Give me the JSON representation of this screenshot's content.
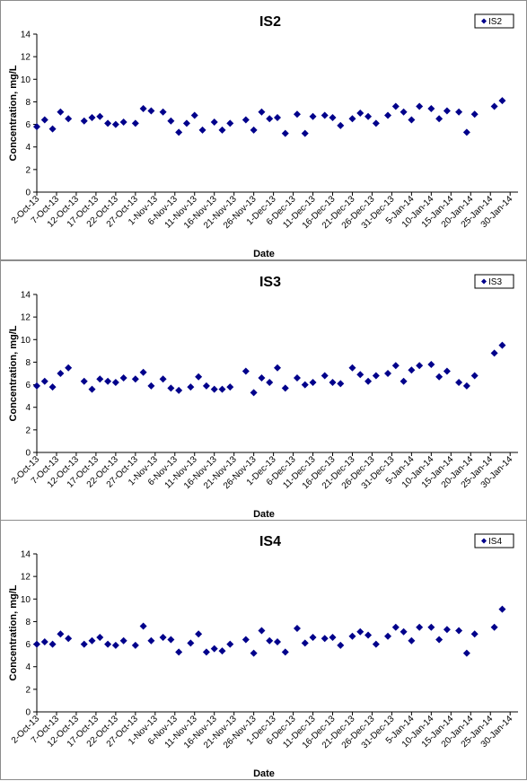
{
  "chart_data": [
    {
      "type": "scatter",
      "title": "IS2",
      "xlabel": "Date",
      "ylabel": "Concentration, mg/L",
      "ylim": [
        0,
        14
      ],
      "yticks": [
        0,
        2,
        4,
        6,
        8,
        10,
        12,
        14
      ],
      "xlim": [
        "2-Oct-13",
        "1-Feb-14"
      ],
      "xtick_labels": [
        "2-Oct-13",
        "7-Oct-13",
        "12-Oct-13",
        "17-Oct-13",
        "22-Oct-13",
        "27-Oct-13",
        "1-Nov-13",
        "6-Nov-13",
        "11-Nov-13",
        "16-Nov-13",
        "21-Nov-13",
        "26-Nov-13",
        "1-Dec-13",
        "6-Dec-13",
        "11-Dec-13",
        "16-Dec-13",
        "21-Dec-13",
        "26-Dec-13",
        "31-Dec-13",
        "5-Jan-14",
        "10-Jan-14",
        "15-Jan-14",
        "20-Jan-14",
        "25-Jan-14",
        "30-Jan-14"
      ],
      "grid": false,
      "legend_position": "top-right",
      "series": [
        {
          "name": "IS2",
          "color": "#00008B",
          "marker": "diamond",
          "points": [
            [
              "2-Oct-13",
              5.8
            ],
            [
              "4-Oct-13",
              6.4
            ],
            [
              "6-Oct-13",
              5.6
            ],
            [
              "8-Oct-13",
              7.1
            ],
            [
              "10-Oct-13",
              6.5
            ],
            [
              "14-Oct-13",
              6.3
            ],
            [
              "16-Oct-13",
              6.6
            ],
            [
              "18-Oct-13",
              6.7
            ],
            [
              "20-Oct-13",
              6.1
            ],
            [
              "22-Oct-13",
              6.0
            ],
            [
              "24-Oct-13",
              6.2
            ],
            [
              "27-Oct-13",
              6.1
            ],
            [
              "29-Oct-13",
              7.4
            ],
            [
              "31-Oct-13",
              7.2
            ],
            [
              "3-Nov-13",
              7.1
            ],
            [
              "5-Nov-13",
              6.3
            ],
            [
              "7-Nov-13",
              5.3
            ],
            [
              "9-Nov-13",
              6.1
            ],
            [
              "11-Nov-13",
              6.8
            ],
            [
              "13-Nov-13",
              5.5
            ],
            [
              "16-Nov-13",
              6.2
            ],
            [
              "18-Nov-13",
              5.5
            ],
            [
              "20-Nov-13",
              6.1
            ],
            [
              "24-Nov-13",
              6.4
            ],
            [
              "26-Nov-13",
              5.5
            ],
            [
              "28-Nov-13",
              7.1
            ],
            [
              "30-Nov-13",
              6.5
            ],
            [
              "2-Dec-13",
              6.6
            ],
            [
              "4-Dec-13",
              5.2
            ],
            [
              "7-Dec-13",
              6.9
            ],
            [
              "9-Dec-13",
              5.2
            ],
            [
              "11-Dec-13",
              6.7
            ],
            [
              "14-Dec-13",
              6.8
            ],
            [
              "16-Dec-13",
              6.6
            ],
            [
              "18-Dec-13",
              5.9
            ],
            [
              "21-Dec-13",
              6.5
            ],
            [
              "23-Dec-13",
              7.0
            ],
            [
              "25-Dec-13",
              6.7
            ],
            [
              "27-Dec-13",
              6.1
            ],
            [
              "30-Dec-13",
              6.8
            ],
            [
              "1-Jan-14",
              7.6
            ],
            [
              "3-Jan-14",
              7.1
            ],
            [
              "5-Jan-14",
              6.4
            ],
            [
              "7-Jan-14",
              7.6
            ],
            [
              "10-Jan-14",
              7.4
            ],
            [
              "12-Jan-14",
              6.5
            ],
            [
              "14-Jan-14",
              7.2
            ],
            [
              "17-Jan-14",
              7.1
            ],
            [
              "19-Jan-14",
              5.3
            ],
            [
              "21-Jan-14",
              6.9
            ],
            [
              "26-Jan-14",
              7.6
            ],
            [
              "28-Jan-14",
              8.1
            ]
          ]
        }
      ]
    },
    {
      "type": "scatter",
      "title": "IS3",
      "xlabel": "Date",
      "ylabel": "Concentration, mg/L",
      "ylim": [
        0,
        14
      ],
      "yticks": [
        0,
        2,
        4,
        6,
        8,
        10,
        12,
        14
      ],
      "xlim": [
        "2-Oct-13",
        "1-Feb-14"
      ],
      "xtick_labels": [
        "2-Oct-13",
        "7-Oct-13",
        "12-Oct-13",
        "17-Oct-13",
        "22-Oct-13",
        "27-Oct-13",
        "1-Nov-13",
        "6-Nov-13",
        "11-Nov-13",
        "16-Nov-13",
        "21-Nov-13",
        "26-Nov-13",
        "1-Dec-13",
        "6-Dec-13",
        "11-Dec-13",
        "16-Dec-13",
        "21-Dec-13",
        "26-Dec-13",
        "31-Dec-13",
        "5-Jan-14",
        "10-Jan-14",
        "15-Jan-14",
        "20-Jan-14",
        "25-Jan-14",
        "30-Jan-14"
      ],
      "grid": false,
      "legend_position": "top-right",
      "series": [
        {
          "name": "IS3",
          "color": "#00008B",
          "marker": "diamond",
          "points": [
            [
              "2-Oct-13",
              5.9
            ],
            [
              "4-Oct-13",
              6.3
            ],
            [
              "6-Oct-13",
              5.8
            ],
            [
              "8-Oct-13",
              7.0
            ],
            [
              "10-Oct-13",
              7.5
            ],
            [
              "14-Oct-13",
              6.3
            ],
            [
              "16-Oct-13",
              5.6
            ],
            [
              "18-Oct-13",
              6.5
            ],
            [
              "20-Oct-13",
              6.3
            ],
            [
              "22-Oct-13",
              6.2
            ],
            [
              "24-Oct-13",
              6.6
            ],
            [
              "27-Oct-13",
              6.5
            ],
            [
              "29-Oct-13",
              7.1
            ],
            [
              "31-Oct-13",
              5.9
            ],
            [
              "3-Nov-13",
              6.5
            ],
            [
              "5-Nov-13",
              5.7
            ],
            [
              "7-Nov-13",
              5.5
            ],
            [
              "10-Nov-13",
              5.8
            ],
            [
              "12-Nov-13",
              6.7
            ],
            [
              "14-Nov-13",
              5.9
            ],
            [
              "16-Nov-13",
              5.6
            ],
            [
              "18-Nov-13",
              5.6
            ],
            [
              "20-Nov-13",
              5.8
            ],
            [
              "24-Nov-13",
              7.2
            ],
            [
              "26-Nov-13",
              5.3
            ],
            [
              "28-Nov-13",
              6.6
            ],
            [
              "30-Nov-13",
              6.2
            ],
            [
              "2-Dec-13",
              7.5
            ],
            [
              "4-Dec-13",
              5.7
            ],
            [
              "7-Dec-13",
              6.6
            ],
            [
              "9-Dec-13",
              6.0
            ],
            [
              "11-Dec-13",
              6.2
            ],
            [
              "14-Dec-13",
              6.8
            ],
            [
              "16-Dec-13",
              6.2
            ],
            [
              "18-Dec-13",
              6.1
            ],
            [
              "21-Dec-13",
              7.5
            ],
            [
              "23-Dec-13",
              6.9
            ],
            [
              "25-Dec-13",
              6.3
            ],
            [
              "27-Dec-13",
              6.8
            ],
            [
              "30-Dec-13",
              7.0
            ],
            [
              "1-Jan-14",
              7.7
            ],
            [
              "3-Jan-14",
              6.3
            ],
            [
              "5-Jan-14",
              7.3
            ],
            [
              "7-Jan-14",
              7.7
            ],
            [
              "10-Jan-14",
              7.8
            ],
            [
              "12-Jan-14",
              6.7
            ],
            [
              "14-Jan-14",
              7.2
            ],
            [
              "17-Jan-14",
              6.2
            ],
            [
              "19-Jan-14",
              5.9
            ],
            [
              "21-Jan-14",
              6.8
            ],
            [
              "26-Jan-14",
              8.8
            ],
            [
              "28-Jan-14",
              9.5
            ]
          ]
        }
      ]
    },
    {
      "type": "scatter",
      "title": "IS4",
      "xlabel": "Date",
      "ylabel": "Concentration, mg/L",
      "ylim": [
        0,
        14
      ],
      "yticks": [
        0,
        2,
        4,
        6,
        8,
        10,
        12,
        14
      ],
      "xlim": [
        "2-Oct-13",
        "1-Feb-14"
      ],
      "xtick_labels": [
        "2-Oct-13",
        "7-Oct-13",
        "12-Oct-13",
        "17-Oct-13",
        "22-Oct-13",
        "27-Oct-13",
        "1-Nov-13",
        "6-Nov-13",
        "11-Nov-13",
        "16-Nov-13",
        "21-Nov-13",
        "26-Nov-13",
        "1-Dec-13",
        "6-Dec-13",
        "11-Dec-13",
        "16-Dec-13",
        "21-Dec-13",
        "26-Dec-13",
        "31-Dec-13",
        "5-Jan-14",
        "10-Jan-14",
        "15-Jan-14",
        "20-Jan-14",
        "25-Jan-14",
        "30-Jan-14"
      ],
      "grid": false,
      "legend_position": "top-right",
      "series": [
        {
          "name": "IS4",
          "color": "#00008B",
          "marker": "diamond",
          "points": [
            [
              "2-Oct-13",
              6.0
            ],
            [
              "4-Oct-13",
              6.2
            ],
            [
              "6-Oct-13",
              6.0
            ],
            [
              "8-Oct-13",
              6.9
            ],
            [
              "10-Oct-13",
              6.5
            ],
            [
              "14-Oct-13",
              6.0
            ],
            [
              "16-Oct-13",
              6.3
            ],
            [
              "18-Oct-13",
              6.6
            ],
            [
              "20-Oct-13",
              6.0
            ],
            [
              "22-Oct-13",
              5.9
            ],
            [
              "24-Oct-13",
              6.3
            ],
            [
              "27-Oct-13",
              5.9
            ],
            [
              "29-Oct-13",
              7.6
            ],
            [
              "31-Oct-13",
              6.3
            ],
            [
              "3-Nov-13",
              6.6
            ],
            [
              "5-Nov-13",
              6.4
            ],
            [
              "7-Nov-13",
              5.3
            ],
            [
              "10-Nov-13",
              6.1
            ],
            [
              "12-Nov-13",
              6.9
            ],
            [
              "14-Nov-13",
              5.3
            ],
            [
              "16-Nov-13",
              5.6
            ],
            [
              "18-Nov-13",
              5.4
            ],
            [
              "20-Nov-13",
              6.0
            ],
            [
              "24-Nov-13",
              6.4
            ],
            [
              "26-Nov-13",
              5.2
            ],
            [
              "28-Nov-13",
              7.2
            ],
            [
              "30-Nov-13",
              6.3
            ],
            [
              "2-Dec-13",
              6.2
            ],
            [
              "4-Dec-13",
              5.3
            ],
            [
              "7-Dec-13",
              7.4
            ],
            [
              "9-Dec-13",
              6.1
            ],
            [
              "11-Dec-13",
              6.6
            ],
            [
              "14-Dec-13",
              6.5
            ],
            [
              "16-Dec-13",
              6.6
            ],
            [
              "18-Dec-13",
              5.9
            ],
            [
              "21-Dec-13",
              6.7
            ],
            [
              "23-Dec-13",
              7.1
            ],
            [
              "25-Dec-13",
              6.8
            ],
            [
              "27-Dec-13",
              6.0
            ],
            [
              "30-Dec-13",
              6.7
            ],
            [
              "1-Jan-14",
              7.5
            ],
            [
              "3-Jan-14",
              7.1
            ],
            [
              "5-Jan-14",
              6.3
            ],
            [
              "7-Jan-14",
              7.5
            ],
            [
              "10-Jan-14",
              7.5
            ],
            [
              "12-Jan-14",
              6.4
            ],
            [
              "14-Jan-14",
              7.3
            ],
            [
              "17-Jan-14",
              7.2
            ],
            [
              "19-Jan-14",
              5.2
            ],
            [
              "21-Jan-14",
              6.9
            ],
            [
              "26-Jan-14",
              7.5
            ],
            [
              "28-Jan-14",
              9.1
            ]
          ]
        }
      ]
    }
  ]
}
